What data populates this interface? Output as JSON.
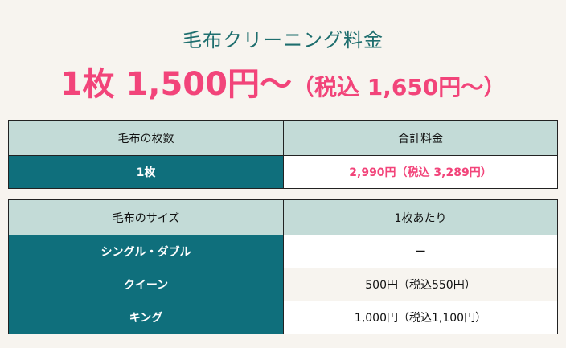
{
  "title": "毛布クリーニング料金",
  "price": {
    "main": "1枚 1,500円〜",
    "tax": "（税込 1,650円〜）"
  },
  "table1": {
    "headers": [
      "毛布の枚数",
      "合計料金"
    ],
    "rows": [
      {
        "label": "1枚",
        "value": "2,990円（税込 3,289円）"
      }
    ]
  },
  "table2": {
    "headers": [
      "毛布のサイズ",
      "1枚あたり"
    ],
    "rows": [
      {
        "label": "シングル・ダブル",
        "value": "ー"
      },
      {
        "label": "クイーン",
        "value": "500円（税込550円）"
      },
      {
        "label": "キング",
        "value": "1,000円（税込1,100円）"
      }
    ]
  },
  "colors": {
    "accent_pink": "#f2447a",
    "teal": "#0f6f7c",
    "header_bg": "#c3dbd7",
    "title_teal": "#1e6e6e"
  }
}
